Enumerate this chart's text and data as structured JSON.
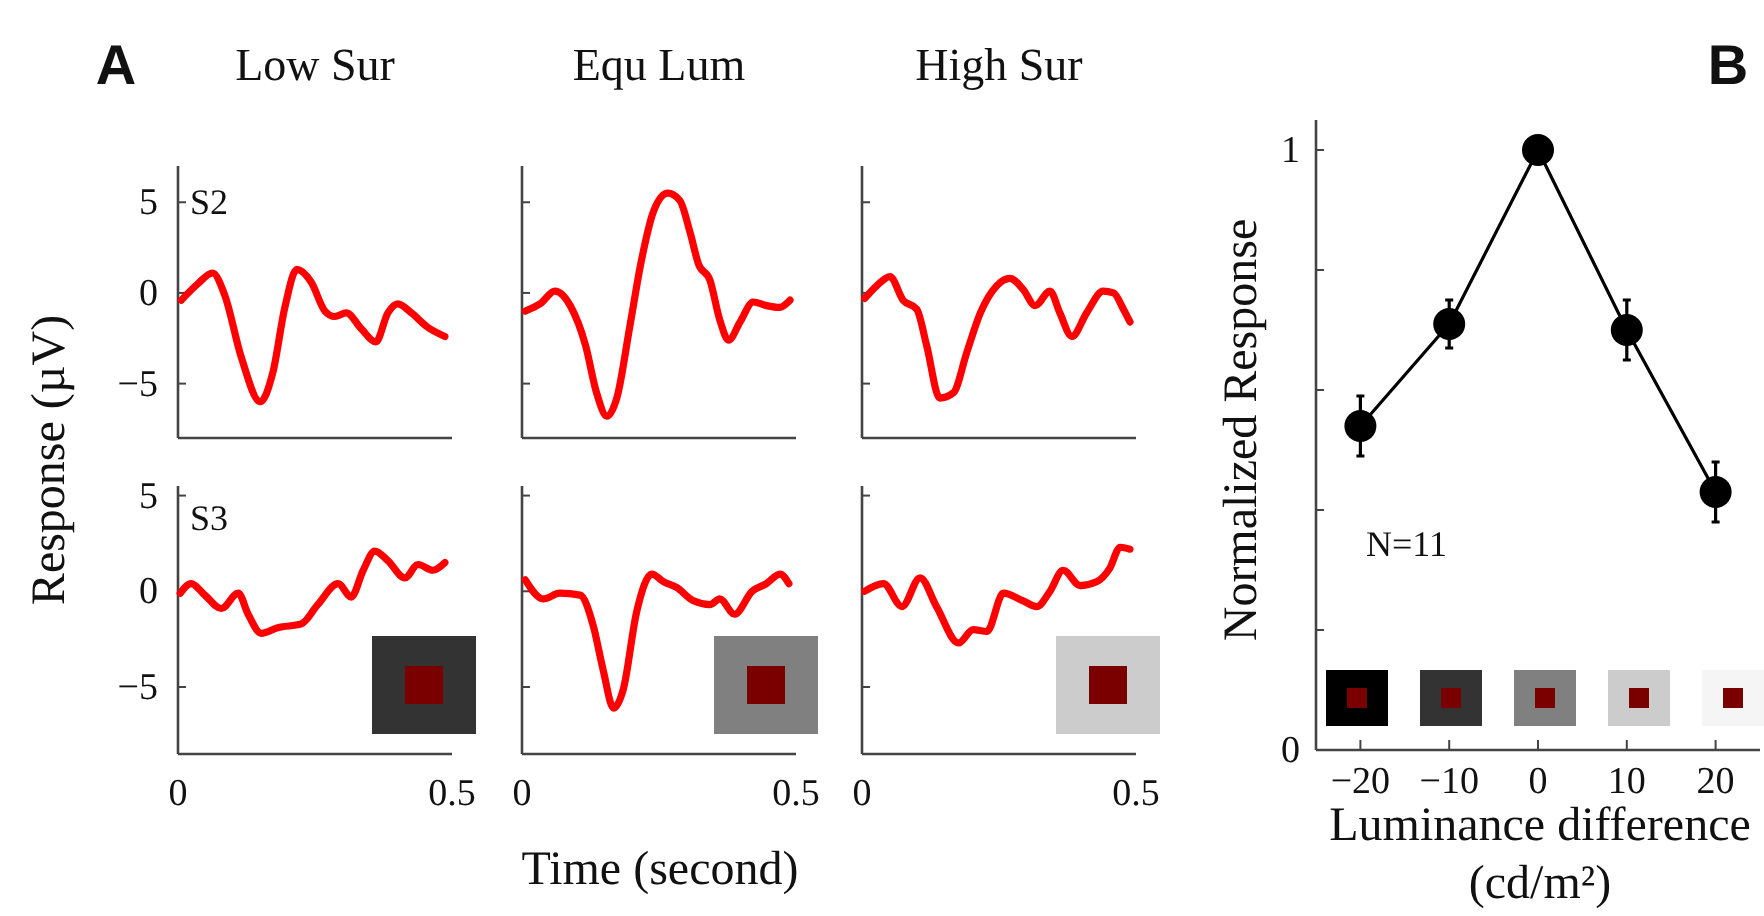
{
  "chart_data": [
    {
      "type": "line",
      "title": "Low Sur",
      "annotations": [
        "A",
        "S2"
      ],
      "xlim": [
        0,
        0.5
      ],
      "ylim": [
        -8,
        7
      ],
      "xticks": [
        0,
        0.5
      ],
      "yticks": [
        -5,
        0,
        5
      ],
      "tick_labels": "y",
      "series": [
        {
          "color": "#ff0000",
          "x": [
            0.006,
            0.036,
            0.063,
            0.085,
            0.116,
            0.15,
            0.173,
            0.195,
            0.217,
            0.243,
            0.268,
            0.286,
            0.307,
            0.335,
            0.361,
            0.383,
            0.401,
            0.426,
            0.456,
            0.487
          ],
          "values": [
            -0.4,
            0.5,
            1.1,
            -0.1,
            -3.6,
            -6,
            -4.4,
            -0.8,
            1.3,
            0.6,
            -1,
            -1.3,
            -1.1,
            -2,
            -2.7,
            -1.1,
            -0.6,
            -1.1,
            -1.9,
            -2.4
          ]
        }
      ]
    },
    {
      "type": "line",
      "title": "Equ Lum",
      "xlim": [
        0,
        0.5
      ],
      "ylim": [
        -8,
        7
      ],
      "xticks": [
        0,
        0.5
      ],
      "yticks": [
        -5,
        0,
        5
      ],
      "tick_labels": false,
      "series": [
        {
          "color": "#ff0000",
          "x": [
            0.006,
            0.033,
            0.06,
            0.088,
            0.116,
            0.136,
            0.155,
            0.173,
            0.197,
            0.218,
            0.24,
            0.266,
            0.288,
            0.307,
            0.322,
            0.343,
            0.361,
            0.377,
            0.398,
            0.422,
            0.446,
            0.47,
            0.489
          ],
          "values": [
            -1,
            -0.6,
            0.1,
            -0.7,
            -2.9,
            -5.5,
            -6.8,
            -5.8,
            -1.8,
            1.8,
            4.5,
            5.5,
            5.1,
            3.3,
            1.6,
            0.7,
            -1.5,
            -2.6,
            -1.6,
            -0.5,
            -0.7,
            -0.8,
            -0.4
          ]
        }
      ]
    },
    {
      "type": "line",
      "title": "High Sur",
      "xlim": [
        0,
        0.5
      ],
      "ylim": [
        -8,
        7
      ],
      "xticks": [
        0,
        0.5
      ],
      "yticks": [
        -5,
        0,
        5
      ],
      "tick_labels": false,
      "series": [
        {
          "color": "#ff0000",
          "x": [
            0.005,
            0.027,
            0.051,
            0.075,
            0.1,
            0.118,
            0.142,
            0.167,
            0.191,
            0.216,
            0.246,
            0.27,
            0.294,
            0.316,
            0.343,
            0.361,
            0.383,
            0.41,
            0.44,
            0.459,
            0.477,
            0.489
          ],
          "values": [
            -0.3,
            0.4,
            0.9,
            -0.4,
            -0.9,
            -2.9,
            -5.8,
            -5.5,
            -3.3,
            -1.1,
            0.4,
            0.8,
            0.2,
            -0.7,
            0.1,
            -1.1,
            -2.4,
            -1.1,
            0.1,
            0,
            -0.9,
            -1.6
          ]
        }
      ]
    },
    {
      "type": "line",
      "ylabel": "Response (µV)",
      "annotations": [
        "S3"
      ],
      "xlim": [
        0,
        0.5
      ],
      "ylim": [
        -8.5,
        5.5
      ],
      "xticks": [
        0,
        0.5
      ],
      "yticks": [
        -5,
        0,
        5
      ],
      "series": [
        {
          "color": "#ff0000",
          "x": [
            0.004,
            0.024,
            0.049,
            0.079,
            0.11,
            0.128,
            0.152,
            0.182,
            0.225,
            0.255,
            0.292,
            0.316,
            0.338,
            0.359,
            0.383,
            0.414,
            0.438,
            0.465,
            0.487
          ],
          "values": [
            -0.1,
            0.4,
            -0.2,
            -0.9,
            -0.1,
            -1.2,
            -2.2,
            -1.9,
            -1.7,
            -0.7,
            0.4,
            -0.3,
            1.1,
            2.1,
            1.6,
            0.7,
            1.4,
            1.1,
            1.5
          ]
        }
      ]
    },
    {
      "type": "line",
      "xlabel": "Time (second)",
      "xlim": [
        0,
        0.5
      ],
      "ylim": [
        -8.5,
        5.5
      ],
      "xticks": [
        0,
        0.5
      ],
      "yticks": [
        -5,
        0,
        5
      ],
      "tick_labels": "x",
      "series": [
        {
          "color": "#ff0000",
          "x": [
            0.006,
            0.039,
            0.069,
            0.106,
            0.13,
            0.148,
            0.167,
            0.185,
            0.209,
            0.237,
            0.258,
            0.282,
            0.313,
            0.343,
            0.361,
            0.388,
            0.42,
            0.446,
            0.471,
            0.487
          ],
          "values": [
            0.6,
            -0.4,
            -0.1,
            -0.2,
            -1.8,
            -4.1,
            -6.1,
            -5.1,
            -1.1,
            0.9,
            0.5,
            0.2,
            -0.5,
            -0.7,
            -0.4,
            -1.2,
            0,
            0.4,
            0.9,
            0.4
          ]
        }
      ]
    },
    {
      "type": "line",
      "xlim": [
        0,
        0.5
      ],
      "ylim": [
        -8.5,
        5.5
      ],
      "xticks": [
        0,
        0.5
      ],
      "yticks": [
        -5,
        0,
        5
      ],
      "tick_labels": "x",
      "series": [
        {
          "color": "#ff0000",
          "x": [
            0.005,
            0.039,
            0.073,
            0.106,
            0.136,
            0.176,
            0.203,
            0.228,
            0.258,
            0.294,
            0.319,
            0.343,
            0.367,
            0.398,
            0.428,
            0.452,
            0.471,
            0.489
          ],
          "values": [
            0,
            0.4,
            -0.8,
            0.7,
            -0.8,
            -2.7,
            -2,
            -2.1,
            -0.1,
            -0.5,
            -0.8,
            0,
            1.1,
            0.3,
            0.5,
            1.2,
            2.3,
            2.2
          ]
        }
      ]
    },
    {
      "type": "line",
      "xlabel": "Luminance difference\n(cd/m²)",
      "ylabel": "Normalized Response",
      "annotations": [
        "B",
        "N=11"
      ],
      "marker": "circle",
      "xlim": [
        -25,
        25
      ],
      "ylim": [
        0,
        1.05
      ],
      "xticks": [
        -20,
        -10,
        0,
        10,
        20
      ],
      "yticks": [
        0,
        {
          "value": 0.2,
          "label": null
        },
        {
          "value": 0.4,
          "label": null
        },
        {
          "value": 0.6,
          "label": null
        },
        {
          "value": 0.8,
          "label": null
        },
        1
      ],
      "series": [
        {
          "color": "#000000",
          "x": [
            -20,
            -10,
            0,
            10,
            20
          ],
          "values": [
            0.54,
            0.71,
            1,
            0.7,
            0.43
          ],
          "errors": [
            0.05,
            0.04,
            null,
            0.05,
            0.05
          ]
        }
      ]
    }
  ]
}
